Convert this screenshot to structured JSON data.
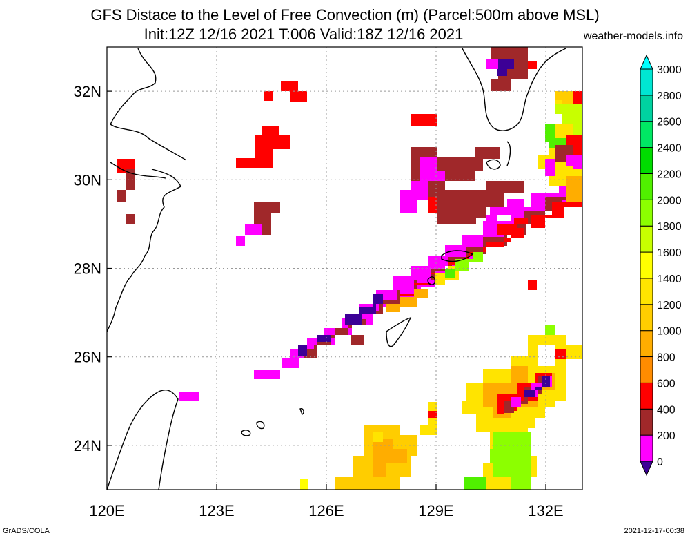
{
  "header": {
    "title_line1": "GFS Distace to the Level of Free Convection (m) (Parcel:500m above MSL)",
    "title_line2": "Init:12Z 12/16 2021 T:006 Valid:18Z 12/16 2021",
    "credit": "weather-models.info"
  },
  "footer": {
    "left": "GrADS/COLA",
    "right": "2021-12-17-00:38"
  },
  "map": {
    "lon_ticks": [
      "120E",
      "123E",
      "126E",
      "129E",
      "132E"
    ],
    "lat_ticks": [
      "32N",
      "30N",
      "28N",
      "26N",
      "24N"
    ],
    "lon_range": [
      120,
      133
    ],
    "lat_range": [
      23,
      33
    ],
    "grid": "dotted"
  },
  "colorbar": {
    "labels": [
      "0",
      "200",
      "400",
      "600",
      "800",
      "1000",
      "1200",
      "1400",
      "1600",
      "1800",
      "2000",
      "2200",
      "2400",
      "2600",
      "2800",
      "3000"
    ],
    "colors": [
      "#3c0096",
      "#ff00ff",
      "#a0282a",
      "#ff0000",
      "#ff8c00",
      "#ffad00",
      "#ffcd00",
      "#ffe400",
      "#ffff00",
      "#c8ff00",
      "#8cff00",
      "#50f000",
      "#00dc00",
      "#00e864",
      "#00d2a0",
      "#00e6d2",
      "#00ffff"
    ],
    "units": "m"
  }
}
